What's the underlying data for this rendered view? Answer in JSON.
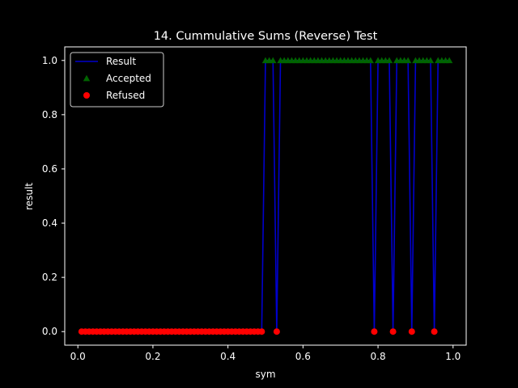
{
  "chart_data": {
    "type": "line",
    "title": "14. Cummulative Sums (Reverse) Test",
    "xlabel": "sym",
    "ylabel": "result",
    "xlim": [
      -0.035,
      1.035
    ],
    "ylim": [
      -0.05,
      1.05
    ],
    "xticks": [
      0.0,
      0.2,
      0.4,
      0.6,
      0.8,
      1.0
    ],
    "xtick_labels": [
      "0.0",
      "0.2",
      "0.4",
      "0.6",
      "0.8",
      "1.0"
    ],
    "yticks": [
      0.0,
      0.2,
      0.4,
      0.6,
      0.8,
      1.0
    ],
    "ytick_labels": [
      "0.0",
      "0.2",
      "0.4",
      "0.6",
      "0.8",
      "1.0"
    ],
    "grid": false,
    "legend_position": "top-left",
    "colors": {
      "background": "#000000",
      "foreground": "#ffffff",
      "result_line": "#0000cc",
      "accepted": "#006400",
      "refused": "#ff0000"
    },
    "series": [
      {
        "name": "Result",
        "kind": "line",
        "x": [
          0.01,
          0.02,
          0.03,
          0.04,
          0.05,
          0.06,
          0.07,
          0.08,
          0.09,
          0.1,
          0.11,
          0.12,
          0.13,
          0.14,
          0.15,
          0.16,
          0.17,
          0.18,
          0.19,
          0.2,
          0.21,
          0.22,
          0.23,
          0.24,
          0.25,
          0.26,
          0.27,
          0.28,
          0.29,
          0.3,
          0.31,
          0.32,
          0.33,
          0.34,
          0.35,
          0.36,
          0.37,
          0.38,
          0.39,
          0.4,
          0.41,
          0.42,
          0.43,
          0.44,
          0.45,
          0.46,
          0.47,
          0.48,
          0.49,
          0.5,
          0.51,
          0.52,
          0.53,
          0.54,
          0.55,
          0.56,
          0.57,
          0.58,
          0.59,
          0.6,
          0.61,
          0.62,
          0.63,
          0.64,
          0.65,
          0.66,
          0.67,
          0.68,
          0.69,
          0.7,
          0.71,
          0.72,
          0.73,
          0.74,
          0.75,
          0.76,
          0.77,
          0.78,
          0.79,
          0.8,
          0.81,
          0.82,
          0.83,
          0.84,
          0.85,
          0.86,
          0.87,
          0.88,
          0.89,
          0.9,
          0.91,
          0.92,
          0.93,
          0.94,
          0.95,
          0.96,
          0.97,
          0.98,
          0.99
        ],
        "y": [
          0,
          0,
          0,
          0,
          0,
          0,
          0,
          0,
          0,
          0,
          0,
          0,
          0,
          0,
          0,
          0,
          0,
          0,
          0,
          0,
          0,
          0,
          0,
          0,
          0,
          0,
          0,
          0,
          0,
          0,
          0,
          0,
          0,
          0,
          0,
          0,
          0,
          0,
          0,
          0,
          0,
          0,
          0,
          0,
          0,
          0,
          0,
          0,
          0,
          1,
          1,
          1,
          0,
          1,
          1,
          1,
          1,
          1,
          1,
          1,
          1,
          1,
          1,
          1,
          1,
          1,
          1,
          1,
          1,
          1,
          1,
          1,
          1,
          1,
          1,
          1,
          1,
          1,
          0,
          1,
          1,
          1,
          1,
          0,
          1,
          1,
          1,
          1,
          0,
          1,
          1,
          1,
          1,
          1,
          0,
          1,
          1,
          1,
          1
        ]
      },
      {
        "name": "Accepted",
        "kind": "marker-triangle",
        "x": [
          0.5,
          0.51,
          0.52,
          0.54,
          0.55,
          0.56,
          0.57,
          0.58,
          0.59,
          0.6,
          0.61,
          0.62,
          0.63,
          0.64,
          0.65,
          0.66,
          0.67,
          0.68,
          0.69,
          0.7,
          0.71,
          0.72,
          0.73,
          0.74,
          0.75,
          0.76,
          0.77,
          0.78,
          0.8,
          0.81,
          0.82,
          0.83,
          0.85,
          0.86,
          0.87,
          0.88,
          0.9,
          0.91,
          0.92,
          0.93,
          0.94,
          0.96,
          0.97,
          0.98,
          0.99
        ],
        "y": [
          1,
          1,
          1,
          1,
          1,
          1,
          1,
          1,
          1,
          1,
          1,
          1,
          1,
          1,
          1,
          1,
          1,
          1,
          1,
          1,
          1,
          1,
          1,
          1,
          1,
          1,
          1,
          1,
          1,
          1,
          1,
          1,
          1,
          1,
          1,
          1,
          1,
          1,
          1,
          1,
          1,
          1,
          1,
          1,
          1
        ]
      },
      {
        "name": "Refused",
        "kind": "marker-circle",
        "x": [
          0.01,
          0.02,
          0.03,
          0.04,
          0.05,
          0.06,
          0.07,
          0.08,
          0.09,
          0.1,
          0.11,
          0.12,
          0.13,
          0.14,
          0.15,
          0.16,
          0.17,
          0.18,
          0.19,
          0.2,
          0.21,
          0.22,
          0.23,
          0.24,
          0.25,
          0.26,
          0.27,
          0.28,
          0.29,
          0.3,
          0.31,
          0.32,
          0.33,
          0.34,
          0.35,
          0.36,
          0.37,
          0.38,
          0.39,
          0.4,
          0.41,
          0.42,
          0.43,
          0.44,
          0.45,
          0.46,
          0.47,
          0.48,
          0.49,
          0.53,
          0.79,
          0.84,
          0.89,
          0.95
        ],
        "y": [
          0,
          0,
          0,
          0,
          0,
          0,
          0,
          0,
          0,
          0,
          0,
          0,
          0,
          0,
          0,
          0,
          0,
          0,
          0,
          0,
          0,
          0,
          0,
          0,
          0,
          0,
          0,
          0,
          0,
          0,
          0,
          0,
          0,
          0,
          0,
          0,
          0,
          0,
          0,
          0,
          0,
          0,
          0,
          0,
          0,
          0,
          0,
          0,
          0,
          0,
          0,
          0,
          0,
          0
        ]
      }
    ]
  }
}
